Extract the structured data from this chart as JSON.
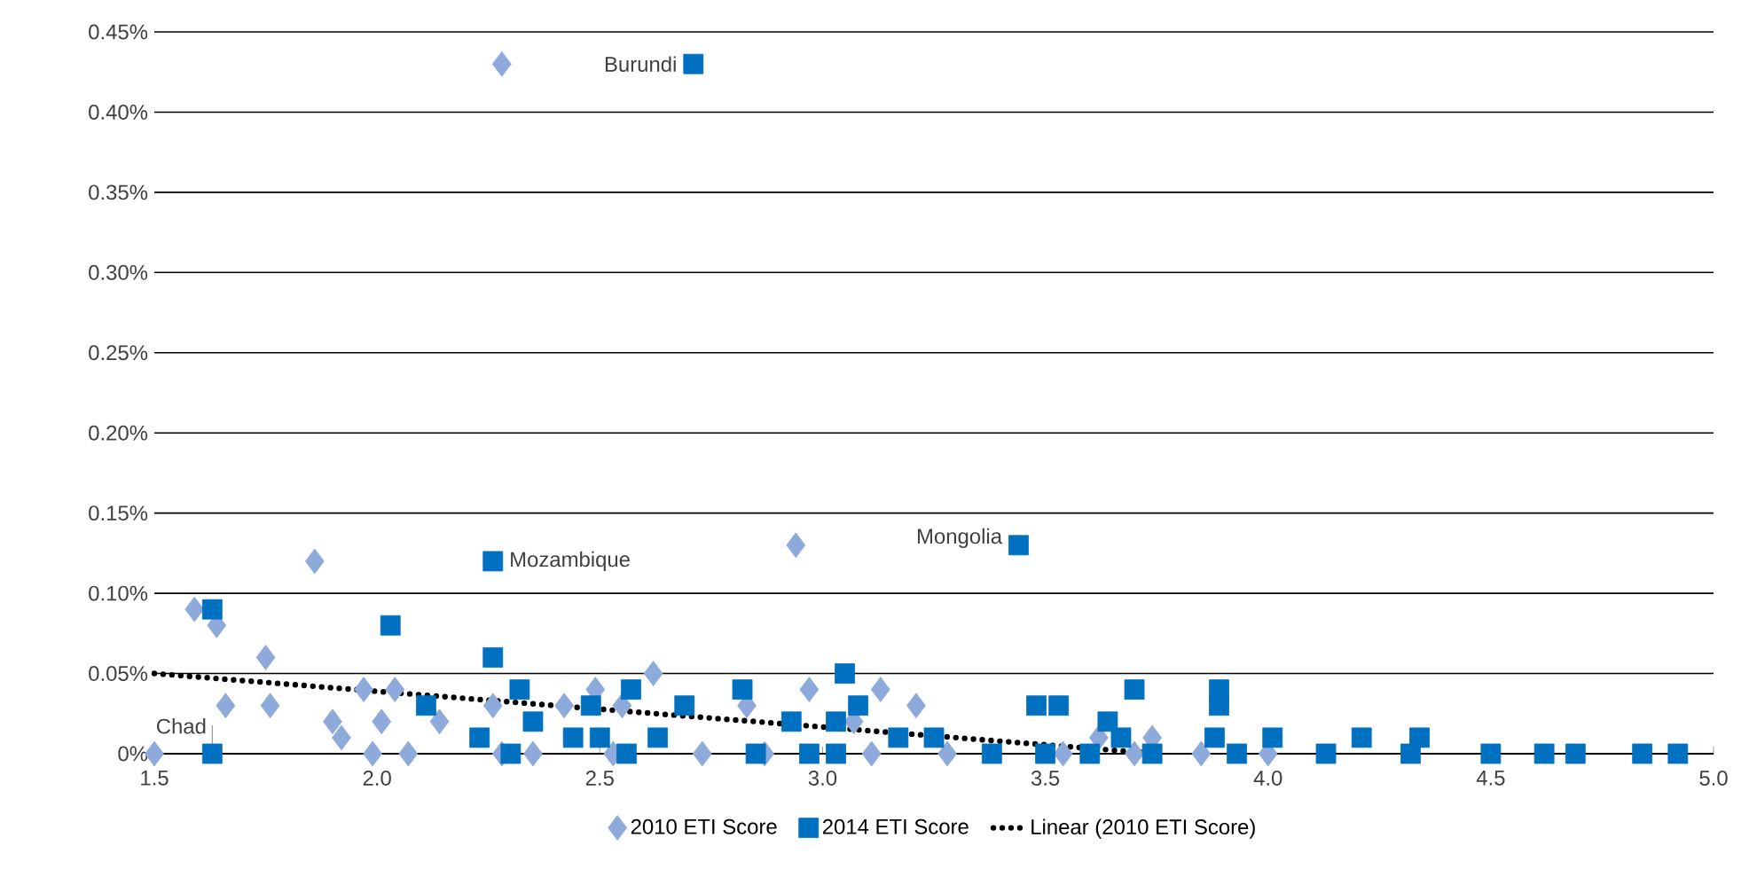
{
  "chart_data": {
    "type": "scatter",
    "series": [
      {
        "name": "2010 ETI Score",
        "color": "#8eaadb",
        "marker": "diamond",
        "x": [
          1.5,
          2.28,
          2.94,
          1.86,
          1.59,
          1.64,
          1.75,
          1.66,
          1.76,
          1.9,
          1.92,
          1.97,
          2.04,
          2.01,
          1.99,
          2.07,
          2.14,
          2.26,
          2.28,
          2.35,
          2.42,
          2.49,
          2.53,
          2.62,
          2.55,
          2.73,
          2.83,
          2.97,
          2.87,
          3.11,
          3.13,
          3.21,
          3.28,
          3.07,
          3.62,
          3.54,
          3.7,
          3.74,
          3.85,
          4.0
        ],
        "values": [
          0,
          0.43,
          0.13,
          0.12,
          0.09,
          0.08,
          0.06,
          0.03,
          0.03,
          0.02,
          0.01,
          0.04,
          0.04,
          0.02,
          0,
          0,
          0.02,
          0.03,
          0,
          0,
          0.03,
          0.04,
          0,
          0.05,
          0.03,
          0,
          0.03,
          0.04,
          0,
          0,
          0.04,
          0.03,
          0,
          0.02,
          0.01,
          0,
          0,
          0.01,
          0,
          0
        ]
      },
      {
        "name": "2014 ETI Score",
        "color": "#0070c0",
        "marker": "square",
        "x": [
          2.71,
          2.26,
          3.44,
          1.63,
          1.63,
          2.03,
          2.11,
          2.23,
          2.26,
          2.32,
          2.3,
          2.35,
          2.44,
          2.48,
          2.5,
          2.57,
          2.56,
          2.63,
          2.69,
          2.82,
          2.85,
          2.93,
          2.97,
          3.03,
          3.05,
          3.08,
          3.03,
          3.17,
          3.25,
          3.48,
          3.53,
          3.38,
          3.5,
          3.64,
          3.7,
          3.67,
          3.6,
          3.74,
          3.89,
          3.89,
          3.88,
          3.93,
          4.01,
          4.13,
          4.21,
          4.32,
          4.34,
          4.5,
          4.62,
          4.69,
          4.84,
          4.92
        ],
        "values": [
          0.43,
          0.12,
          0.13,
          0.09,
          0,
          0.08,
          0.03,
          0.01,
          0.06,
          0.04,
          0,
          0.02,
          0.01,
          0.03,
          0.01,
          0.04,
          0,
          0.01,
          0.03,
          0.04,
          0,
          0.02,
          0,
          0.02,
          0.05,
          0.03,
          0,
          0.01,
          0.01,
          0.03,
          0.03,
          0,
          0,
          0.02,
          0.04,
          0.01,
          0,
          0,
          0.04,
          0.03,
          0.01,
          0,
          0.01,
          0,
          0.01,
          0,
          0.01,
          0,
          0,
          0,
          0,
          0
        ]
      },
      {
        "name": "Linear (2010 ETI Score)",
        "type": "line",
        "color": "#000000",
        "line_style": "dotted",
        "marker": "none",
        "x": [
          1.5,
          3.75
        ],
        "values": [
          0.05,
          0.0
        ]
      }
    ],
    "xlim": [
      1.5,
      5.0
    ],
    "xticks": [
      1.5,
      {
        "value": 2,
        "label": "2.0"
      },
      2.5,
      {
        "value": 3,
        "label": "3.0"
      },
      3.5,
      {
        "value": 4,
        "label": "4.0"
      },
      4.5,
      {
        "value": 5,
        "label": "5.0"
      }
    ],
    "ylim": [
      0,
      0.45
    ],
    "yticks": [
      {
        "value": 0,
        "label": "0%"
      },
      {
        "value": 0.05,
        "label": "0.05%"
      },
      {
        "value": 0.1,
        "label": "0.10%"
      },
      {
        "value": 0.15,
        "label": "0.15%"
      },
      {
        "value": 0.2,
        "label": "0.20%"
      },
      {
        "value": 0.25,
        "label": "0.25%"
      },
      {
        "value": 0.3,
        "label": "0.30%"
      },
      {
        "value": 0.35,
        "label": "0.35%"
      },
      {
        "value": 0.4,
        "label": "0.40%"
      },
      {
        "value": 0.45,
        "label": "0.45%"
      }
    ],
    "grid": "y",
    "legend": "bottom",
    "annotations": [
      {
        "text": "Burundi",
        "x": 2.71,
        "y": 0.43
      },
      {
        "text": "Mozambique",
        "x": 2.26,
        "y": 0.12
      },
      {
        "text": "Mongolia",
        "x": 3.44,
        "y": 0.13
      },
      {
        "text": "Chad",
        "x": 1.63,
        "y": 0
      }
    ]
  }
}
